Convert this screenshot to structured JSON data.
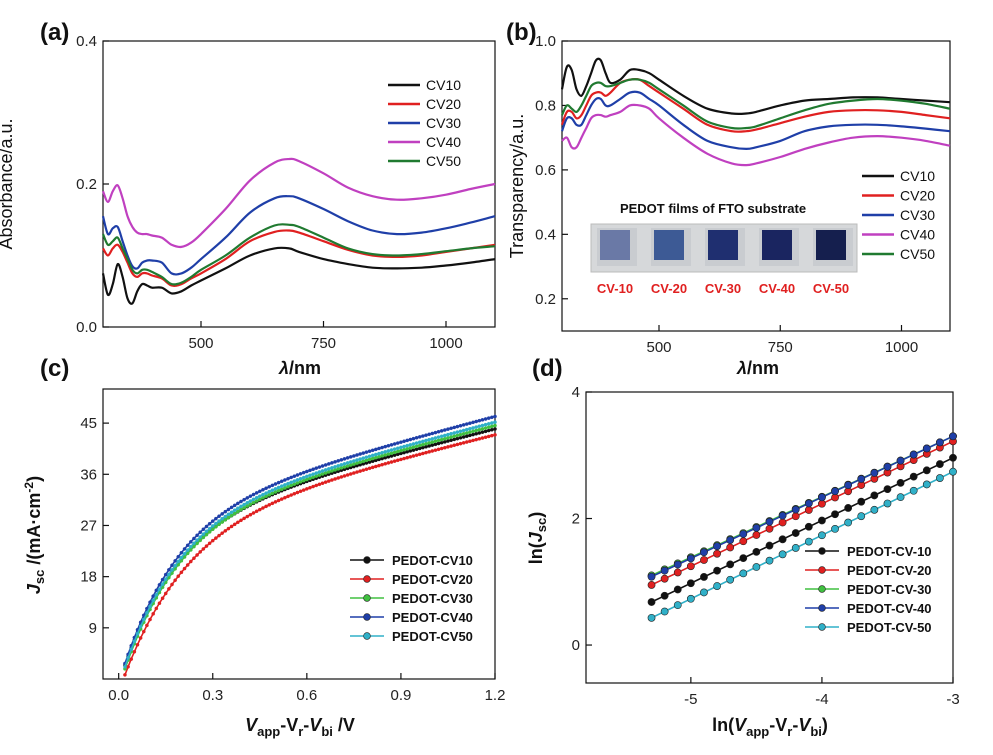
{
  "chart_data": [
    {
      "panel_label": "(a)",
      "type": "line",
      "xlabel_var": "λ",
      "xlabel_unit": "/nm",
      "ylabel": "Absorbance/a.u.",
      "xlim": [
        300,
        1100
      ],
      "ylim": [
        0,
        0.4
      ],
      "xticks": [
        500,
        750,
        1000
      ],
      "yticks": [
        0.0,
        0.2,
        0.4
      ],
      "ytick_labels": [
        "0.0",
        "0.2",
        "0.4"
      ],
      "legend_position": "top-right",
      "series": [
        {
          "name": "CV10",
          "color": "#111111",
          "x": [
            300,
            310,
            320,
            330,
            340,
            350,
            360,
            370,
            380,
            390,
            400,
            420,
            440,
            460,
            480,
            500,
            550,
            600,
            650,
            680,
            700,
            750,
            800,
            850,
            900,
            950,
            1000,
            1050,
            1100
          ],
          "y": [
            0.075,
            0.045,
            0.06,
            0.088,
            0.07,
            0.04,
            0.033,
            0.05,
            0.06,
            0.058,
            0.055,
            0.055,
            0.047,
            0.05,
            0.058,
            0.065,
            0.082,
            0.1,
            0.11,
            0.11,
            0.105,
            0.095,
            0.088,
            0.083,
            0.082,
            0.083,
            0.086,
            0.09,
            0.095
          ]
        },
        {
          "name": "CV20",
          "color": "#e02020",
          "x": [
            300,
            310,
            320,
            330,
            340,
            350,
            360,
            370,
            380,
            390,
            400,
            420,
            440,
            460,
            480,
            500,
            550,
            600,
            650,
            680,
            700,
            750,
            800,
            850,
            900,
            950,
            1000,
            1050,
            1100
          ],
          "y": [
            0.11,
            0.1,
            0.11,
            0.115,
            0.105,
            0.09,
            0.075,
            0.07,
            0.075,
            0.075,
            0.072,
            0.068,
            0.058,
            0.06,
            0.068,
            0.075,
            0.095,
            0.12,
            0.133,
            0.135,
            0.132,
            0.12,
            0.108,
            0.1,
            0.098,
            0.1,
            0.105,
            0.11,
            0.115
          ]
        },
        {
          "name": "CV30",
          "color": "#1f3fa8",
          "x": [
            300,
            310,
            320,
            330,
            340,
            350,
            360,
            370,
            380,
            390,
            400,
            420,
            440,
            460,
            480,
            500,
            550,
            600,
            650,
            680,
            700,
            750,
            800,
            850,
            900,
            950,
            1000,
            1050,
            1100
          ],
          "y": [
            0.155,
            0.13,
            0.138,
            0.14,
            0.12,
            0.1,
            0.085,
            0.082,
            0.09,
            0.093,
            0.093,
            0.09,
            0.075,
            0.075,
            0.083,
            0.095,
            0.125,
            0.16,
            0.18,
            0.183,
            0.18,
            0.165,
            0.148,
            0.135,
            0.13,
            0.132,
            0.138,
            0.146,
            0.155
          ]
        },
        {
          "name": "CV40",
          "color": "#c040c0",
          "x": [
            300,
            310,
            320,
            330,
            340,
            350,
            360,
            370,
            380,
            390,
            400,
            420,
            440,
            460,
            480,
            500,
            550,
            600,
            650,
            680,
            700,
            750,
            800,
            850,
            900,
            950,
            1000,
            1050,
            1100
          ],
          "y": [
            0.19,
            0.175,
            0.19,
            0.198,
            0.18,
            0.155,
            0.14,
            0.132,
            0.13,
            0.13,
            0.128,
            0.125,
            0.115,
            0.112,
            0.118,
            0.13,
            0.165,
            0.205,
            0.23,
            0.235,
            0.232,
            0.215,
            0.195,
            0.183,
            0.178,
            0.18,
            0.185,
            0.193,
            0.2
          ]
        },
        {
          "name": "CV50",
          "color": "#207a30",
          "x": [
            300,
            310,
            320,
            330,
            340,
            350,
            360,
            370,
            380,
            390,
            400,
            420,
            440,
            460,
            480,
            500,
            550,
            600,
            650,
            680,
            700,
            750,
            800,
            850,
            900,
            950,
            1000,
            1050,
            1100
          ],
          "y": [
            0.13,
            0.115,
            0.12,
            0.125,
            0.11,
            0.095,
            0.08,
            0.075,
            0.08,
            0.08,
            0.077,
            0.07,
            0.06,
            0.062,
            0.07,
            0.08,
            0.1,
            0.125,
            0.142,
            0.143,
            0.14,
            0.125,
            0.11,
            0.102,
            0.1,
            0.102,
            0.106,
            0.11,
            0.113
          ]
        }
      ]
    },
    {
      "panel_label": "(b)",
      "type": "line",
      "xlabel_var": "λ",
      "xlabel_unit": "/nm",
      "ylabel": "Transparency/a.u.",
      "xlim": [
        300,
        1100
      ],
      "ylim": [
        0.1,
        1.0
      ],
      "xticks": [
        500,
        750,
        1000
      ],
      "yticks": [
        0.2,
        0.4,
        0.6,
        0.8,
        1.0
      ],
      "ytick_labels": [
        "0.2",
        "0.4",
        "0.6",
        "0.8",
        "1.0"
      ],
      "legend_position": "right",
      "series": [
        {
          "name": "CV10",
          "color": "#111111",
          "x": [
            300,
            310,
            320,
            330,
            340,
            350,
            360,
            370,
            380,
            390,
            400,
            420,
            440,
            460,
            480,
            500,
            550,
            600,
            650,
            680,
            700,
            750,
            800,
            850,
            900,
            950,
            1000,
            1050,
            1100
          ],
          "y": [
            0.85,
            0.92,
            0.91,
            0.85,
            0.83,
            0.86,
            0.9,
            0.94,
            0.94,
            0.9,
            0.87,
            0.88,
            0.91,
            0.91,
            0.9,
            0.88,
            0.83,
            0.79,
            0.775,
            0.775,
            0.78,
            0.8,
            0.815,
            0.82,
            0.825,
            0.825,
            0.82,
            0.815,
            0.81
          ]
        },
        {
          "name": "CV20",
          "color": "#e02020",
          "x": [
            300,
            310,
            320,
            330,
            340,
            350,
            360,
            370,
            380,
            390,
            400,
            420,
            440,
            460,
            480,
            500,
            550,
            600,
            650,
            680,
            700,
            750,
            800,
            850,
            900,
            950,
            1000,
            1050,
            1100
          ],
          "y": [
            0.74,
            0.78,
            0.78,
            0.76,
            0.77,
            0.8,
            0.83,
            0.84,
            0.84,
            0.83,
            0.84,
            0.87,
            0.88,
            0.88,
            0.86,
            0.84,
            0.79,
            0.74,
            0.72,
            0.72,
            0.725,
            0.745,
            0.765,
            0.78,
            0.785,
            0.785,
            0.78,
            0.77,
            0.76
          ]
        },
        {
          "name": "CV30",
          "color": "#1f3fa8",
          "x": [
            300,
            310,
            320,
            330,
            340,
            350,
            360,
            370,
            380,
            390,
            400,
            420,
            440,
            460,
            480,
            500,
            550,
            600,
            650,
            680,
            700,
            750,
            800,
            850,
            900,
            950,
            1000,
            1050,
            1100
          ],
          "y": [
            0.72,
            0.76,
            0.76,
            0.74,
            0.74,
            0.77,
            0.8,
            0.82,
            0.82,
            0.8,
            0.8,
            0.82,
            0.84,
            0.84,
            0.82,
            0.8,
            0.74,
            0.69,
            0.67,
            0.665,
            0.67,
            0.69,
            0.72,
            0.735,
            0.74,
            0.74,
            0.735,
            0.728,
            0.72
          ]
        },
        {
          "name": "CV40",
          "color": "#c040c0",
          "x": [
            300,
            310,
            320,
            330,
            340,
            350,
            360,
            370,
            380,
            390,
            400,
            420,
            440,
            460,
            480,
            500,
            550,
            600,
            650,
            680,
            700,
            750,
            800,
            850,
            900,
            950,
            1000,
            1050,
            1100
          ],
          "y": [
            0.69,
            0.7,
            0.67,
            0.67,
            0.7,
            0.73,
            0.76,
            0.77,
            0.77,
            0.765,
            0.77,
            0.78,
            0.8,
            0.8,
            0.79,
            0.76,
            0.7,
            0.65,
            0.62,
            0.615,
            0.62,
            0.64,
            0.665,
            0.685,
            0.7,
            0.705,
            0.7,
            0.69,
            0.675
          ]
        },
        {
          "name": "CV50",
          "color": "#207a30",
          "x": [
            300,
            310,
            320,
            330,
            340,
            350,
            360,
            370,
            380,
            390,
            400,
            420,
            440,
            460,
            480,
            500,
            550,
            600,
            650,
            680,
            700,
            750,
            800,
            850,
            900,
            950,
            1000,
            1050,
            1100
          ],
          "y": [
            0.77,
            0.8,
            0.79,
            0.78,
            0.8,
            0.83,
            0.86,
            0.87,
            0.87,
            0.86,
            0.86,
            0.87,
            0.88,
            0.88,
            0.87,
            0.85,
            0.8,
            0.75,
            0.73,
            0.73,
            0.735,
            0.76,
            0.785,
            0.805,
            0.815,
            0.82,
            0.815,
            0.805,
            0.79
          ]
        }
      ],
      "inset": {
        "title": "PEDOT films of FTO substrate",
        "labels": [
          "CV-10",
          "CV-20",
          "CV-30",
          "CV-40",
          "CV-50"
        ],
        "film_colors": [
          "#6a79a6",
          "#3d5a95",
          "#1f2f70",
          "#1a2560",
          "#151f4e"
        ]
      }
    },
    {
      "panel_label": "(c)",
      "type": "line",
      "xlabel": "Vapp-Vr-Vbi /V",
      "ylabel": "Jsc /(mA·cm-2)",
      "xlim": [
        -0.05,
        1.2
      ],
      "ylim": [
        0,
        51
      ],
      "xticks": [
        0.0,
        0.3,
        0.6,
        0.9,
        1.2
      ],
      "xtick_labels": [
        "0.0",
        "0.3",
        "0.6",
        "0.9",
        "1.2"
      ],
      "yticks": [
        9,
        18,
        27,
        36,
        45
      ],
      "legend_position": "bottom-right",
      "markers": true,
      "series": [
        {
          "name": "PEDOT-CV10",
          "color": "#111111",
          "params": [
            44.0,
            6.2,
            0.005
          ]
        },
        {
          "name": "PEDOT-CV20",
          "color": "#e02020",
          "params": [
            43.0,
            5.5,
            0.015
          ]
        },
        {
          "name": "PEDOT-CV30",
          "color": "#40c040",
          "params": [
            44.6,
            6.0,
            0.009
          ]
        },
        {
          "name": "PEDOT-CV40",
          "color": "#1f3fa8",
          "params": [
            46.2,
            6.2,
            0.004
          ]
        },
        {
          "name": "PEDOT-CV50",
          "color": "#30b0c8",
          "params": [
            45.2,
            6.1,
            0.007
          ]
        }
      ]
    },
    {
      "panel_label": "(d)",
      "type": "line",
      "xlabel": "ln(Vapp-Vr-Vbi)",
      "ylabel": "ln(Jsc)",
      "xlim": [
        -5.8,
        -3.0
      ],
      "ylim": [
        -0.6,
        4.0
      ],
      "xticks": [
        -5,
        -4,
        -3
      ],
      "xtick_labels": [
        "-5",
        "-4",
        "-3"
      ],
      "yticks": [
        0,
        2,
        4
      ],
      "legend_position": "bottom-right",
      "markers": true,
      "series": [
        {
          "name": "PEDOT-CV-10",
          "color": "#111111",
          "x_start": -5.3,
          "x_end": -3.0,
          "y_start": 0.68,
          "y_end": 2.96
        },
        {
          "name": "PEDOT-CV-20",
          "color": "#e02020",
          "x_start": -5.3,
          "x_end": -3.0,
          "y_start": 0.95,
          "y_end": 3.22
        },
        {
          "name": "PEDOT-CV-30",
          "color": "#40c040",
          "x_start": -5.3,
          "x_end": -3.0,
          "y_start": 1.1,
          "y_end": 3.3
        },
        {
          "name": "PEDOT-CV-40",
          "color": "#1f3fa8",
          "x_start": -5.3,
          "x_end": -3.0,
          "y_start": 1.08,
          "y_end": 3.3
        },
        {
          "name": "PEDOT-CV-50",
          "color": "#30b0c8",
          "x_start": -5.3,
          "x_end": -3.0,
          "y_start": 0.43,
          "y_end": 2.74
        }
      ]
    }
  ]
}
